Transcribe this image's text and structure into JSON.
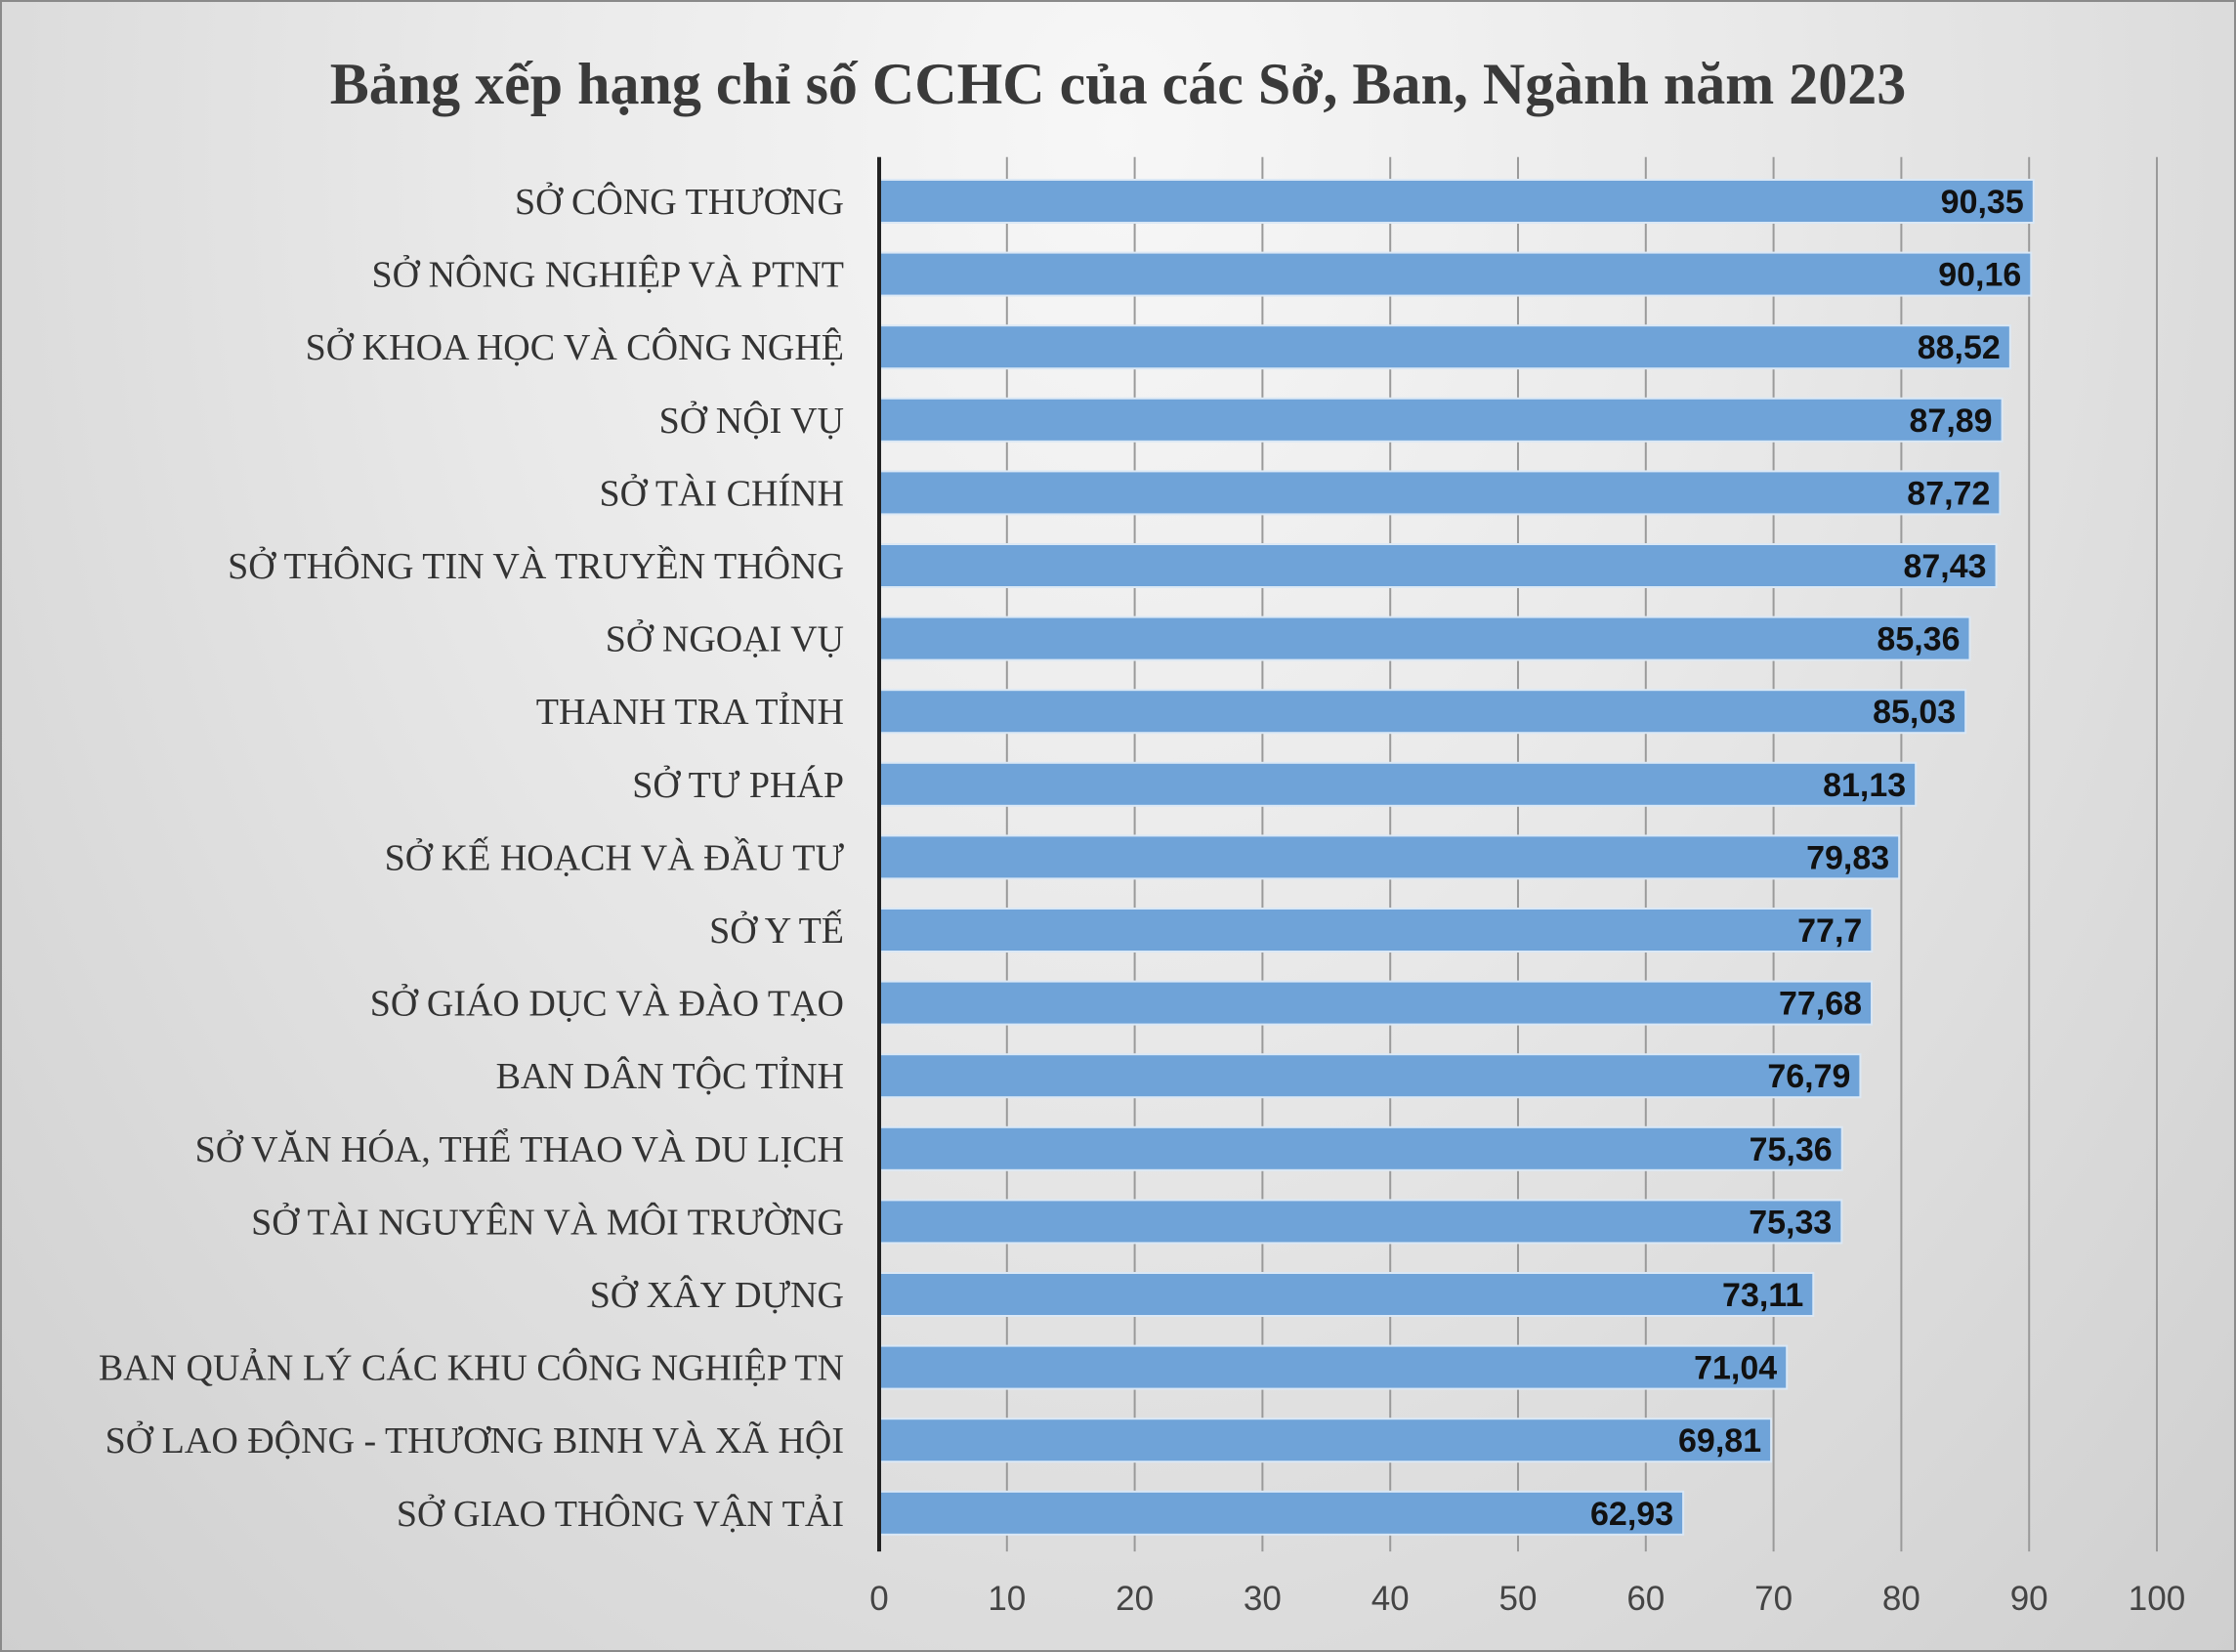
{
  "chart_data": {
    "type": "bar",
    "orientation": "horizontal",
    "title": "Bảng xếp hạng chỉ số CCHC của các Sở, Ban, Ngành năm 2023",
    "categories": [
      "SỞ CÔNG THƯƠNG",
      "SỞ NÔNG NGHIỆP VÀ PTNT",
      "SỞ KHOA HỌC VÀ CÔNG NGHỆ",
      "SỞ NỘI VỤ",
      "SỞ TÀI CHÍNH",
      "SỞ THÔNG TIN VÀ TRUYỀN THÔNG",
      "SỞ NGOẠI VỤ",
      "THANH TRA TỈNH",
      "SỞ TƯ PHÁP",
      "SỞ KẾ HOẠCH VÀ ĐẦU TƯ",
      "SỞ Y TẾ",
      "SỞ GIÁO DỤC VÀ ĐÀO TẠO",
      "BAN DÂN TỘC TỈNH",
      "SỞ VĂN HÓA, THỂ THAO VÀ DU LỊCH",
      "SỞ TÀI NGUYÊN VÀ MÔI TRƯỜNG",
      "SỞ XÂY DỰNG",
      "BAN QUẢN LÝ CÁC KHU CÔNG NGHIỆP TN",
      "SỞ LAO ĐỘNG - THƯƠNG BINH VÀ XÃ HỘI",
      "SỞ GIAO THÔNG VẬN TẢI"
    ],
    "values": [
      90.35,
      90.16,
      88.52,
      87.89,
      87.72,
      87.43,
      85.36,
      85.03,
      81.13,
      79.83,
      77.7,
      77.68,
      76.79,
      75.36,
      75.33,
      73.11,
      71.04,
      69.81,
      62.93
    ],
    "value_labels": [
      "90,35",
      "90,16",
      "88,52",
      "87,89",
      "87,72",
      "87,43",
      "85,36",
      "85,03",
      "81,13",
      "79,83",
      "77,7",
      "77,68",
      "76,79",
      "75,36",
      "75,33",
      "73,11",
      "71,04",
      "69,81",
      "62,93"
    ],
    "x_ticks": [
      "0",
      "10",
      "20",
      "30",
      "40",
      "50",
      "60",
      "70",
      "80",
      "90",
      "100"
    ],
    "xlim": [
      0,
      100
    ],
    "grid": true,
    "legend": "none",
    "bar_color": "#6fa3d8"
  }
}
